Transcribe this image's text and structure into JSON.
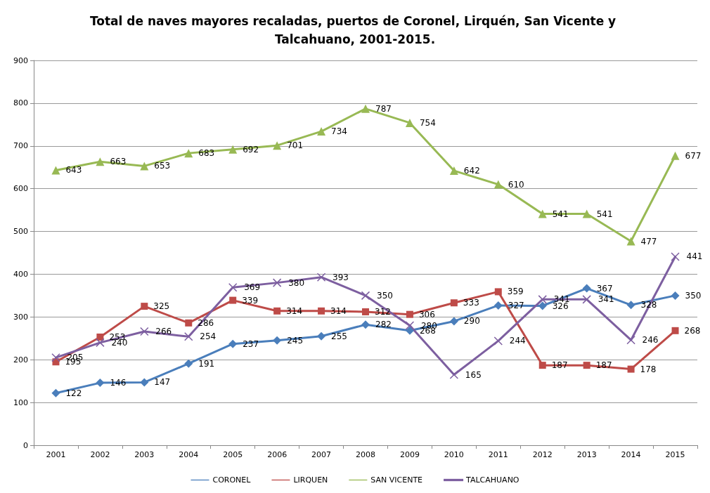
{
  "chart_data": {
    "type": "line",
    "title": "Total de naves mayores recaladas, puertos de Coronel, Lirquén, San Vicente y Talcahuano, 2001-2015.",
    "categories": [
      "2001",
      "2002",
      "2003",
      "2004",
      "2005",
      "2006",
      "2007",
      "2008",
      "2009",
      "2010",
      "2011",
      "2012",
      "2013",
      "2014",
      "2015"
    ],
    "series": [
      {
        "name": "CORONEL",
        "color": "#4a7ebb",
        "marker": "diamond",
        "values": [
          122,
          146,
          147,
          191,
          237,
          245,
          255,
          282,
          268,
          290,
          327,
          326,
          367,
          328,
          350
        ]
      },
      {
        "name": "LIRQUEN",
        "color": "#be4b48",
        "marker": "square",
        "values": [
          195,
          253,
          325,
          286,
          339,
          314,
          314,
          312,
          306,
          333,
          359,
          187,
          187,
          178,
          268
        ]
      },
      {
        "name": "SAN VICENTE",
        "color": "#98b954",
        "marker": "triangle",
        "values": [
          643,
          663,
          653,
          683,
          692,
          701,
          734,
          787,
          754,
          642,
          610,
          541,
          541,
          477,
          677
        ]
      },
      {
        "name": "TALCAHUANO",
        "color": "#7d5fa0",
        "marker": "cross",
        "values": [
          205,
          240,
          266,
          254,
          369,
          380,
          393,
          350,
          280,
          165,
          244,
          341,
          341,
          246,
          441
        ]
      }
    ],
    "ylim": [
      0,
      900
    ],
    "yticks": [
      0,
      100,
      200,
      300,
      400,
      500,
      600,
      700,
      800,
      900
    ],
    "grid": "y",
    "legend": "bottom",
    "data_labels": true,
    "line_style": "solid"
  }
}
